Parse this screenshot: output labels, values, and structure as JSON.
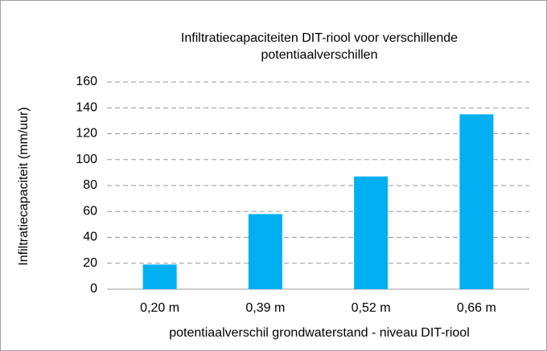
{
  "chart_data": {
    "type": "bar",
    "title": "Infiltratiecapaciteiten DIT-riool voor verschillende potentiaalverschillen",
    "x_label": "potentiaalverschil grondwaterstand - niveau DIT-riool",
    "y_label": "Infiltratiecapaciteit (mm/uur)",
    "categories": [
      "0,20 m",
      "0,39 m",
      "0,52 m",
      "0,66 m"
    ],
    "values": [
      19,
      58,
      87,
      135
    ],
    "color": "#00b0f0",
    "ylim": [
      0,
      160
    ],
    "yticks": [
      0,
      20,
      40,
      60,
      80,
      100,
      120,
      140,
      160
    ],
    "grid": true
  }
}
